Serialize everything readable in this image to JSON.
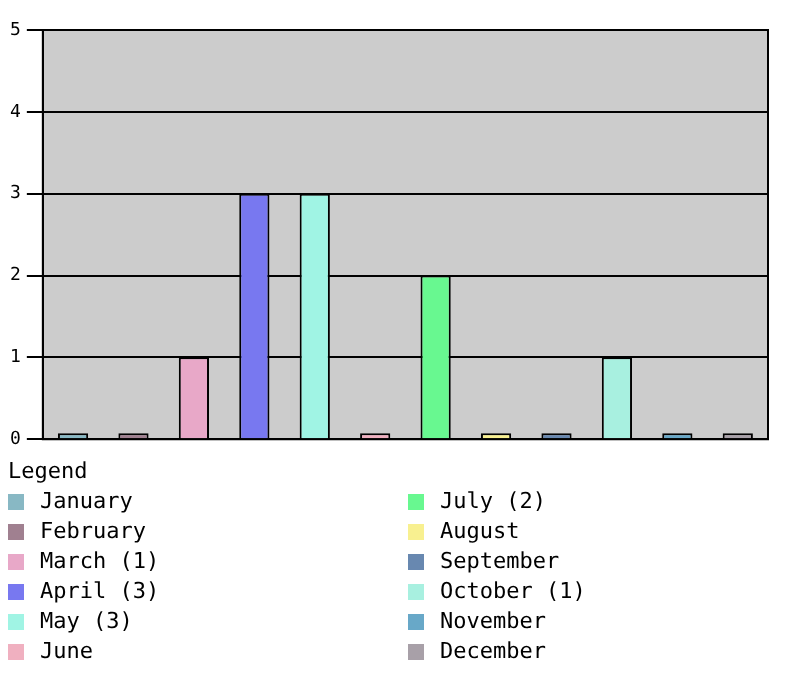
{
  "chart_data": {
    "type": "bar",
    "stacked": true,
    "categories": [
      null,
      null,
      null,
      null,
      null,
      null,
      null,
      null,
      null,
      null,
      null,
      null
    ],
    "series": [
      {
        "name": "January",
        "color": "#88b8c4",
        "values": [
          0,
          null,
          null,
          null,
          null,
          null,
          null,
          null,
          null,
          null,
          null,
          null
        ]
      },
      {
        "name": "February",
        "color": "#a08090",
        "values": [
          null,
          0,
          null,
          null,
          null,
          null,
          null,
          null,
          null,
          null,
          null,
          null
        ]
      },
      {
        "name": "March (1)",
        "color": "#e8a8c8",
        "values": [
          null,
          null,
          1,
          null,
          null,
          null,
          null,
          null,
          null,
          null,
          null,
          null
        ]
      },
      {
        "name": "April (3)",
        "color": "#7878f0",
        "values": [
          null,
          null,
          null,
          3,
          null,
          null,
          null,
          null,
          null,
          null,
          null,
          null
        ]
      },
      {
        "name": "May (3)",
        "color": "#a0f4e4",
        "values": [
          null,
          null,
          null,
          null,
          3,
          null,
          null,
          null,
          null,
          null,
          null,
          null
        ]
      },
      {
        "name": "June",
        "color": "#f0b0c0",
        "values": [
          null,
          null,
          null,
          null,
          null,
          0,
          null,
          null,
          null,
          null,
          null,
          null
        ]
      },
      {
        "name": "July (2)",
        "color": "#68f890",
        "values": [
          null,
          null,
          null,
          null,
          null,
          null,
          2,
          null,
          null,
          null,
          null,
          null
        ]
      },
      {
        "name": "August",
        "color": "#f8f090",
        "values": [
          null,
          null,
          null,
          null,
          null,
          null,
          null,
          0,
          null,
          null,
          null,
          null
        ]
      },
      {
        "name": "September",
        "color": "#6888b0",
        "values": [
          null,
          null,
          null,
          null,
          null,
          null,
          null,
          null,
          0,
          null,
          null,
          null
        ]
      },
      {
        "name": "October (1)",
        "color": "#a8f0e0",
        "values": [
          null,
          null,
          null,
          null,
          null,
          null,
          null,
          null,
          null,
          1,
          null,
          null
        ]
      },
      {
        "name": "November",
        "color": "#68a8c8",
        "values": [
          null,
          null,
          null,
          null,
          null,
          null,
          null,
          null,
          null,
          null,
          0,
          null
        ]
      },
      {
        "name": "December",
        "color": "#a8a0a8",
        "values": [
          null,
          null,
          null,
          null,
          null,
          null,
          null,
          null,
          null,
          null,
          null,
          0
        ]
      }
    ],
    "ylim": [
      0,
      5
    ],
    "yticks": [
      0,
      1,
      2,
      3,
      4,
      5
    ],
    "grid": "y",
    "legend": "bottom",
    "legend_title": "Legend"
  }
}
